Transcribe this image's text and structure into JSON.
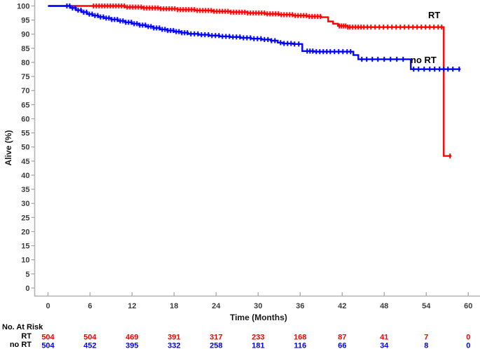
{
  "figure": {
    "background": "#ffffff"
  },
  "chart_data": {
    "type": "line",
    "subtype": "kaplan-meier-step-survival",
    "title": "",
    "xlabel": "Time (Months)",
    "ylabel": "Alive (%)",
    "xlim": [
      0,
      60
    ],
    "ylim": [
      0,
      100
    ],
    "grid": false,
    "legend_position": "inline-curve-labels",
    "xticks": [
      0,
      6,
      12,
      18,
      24,
      30,
      36,
      42,
      48,
      54,
      60
    ],
    "yticks": [
      0,
      5,
      10,
      15,
      20,
      25,
      30,
      35,
      40,
      45,
      50,
      55,
      60,
      65,
      70,
      75,
      80,
      85,
      90,
      95,
      100
    ],
    "axis_color": "#b4b4b4",
    "tick_color": "#a8a8a8",
    "tick_label_color": "#3d3d3d",
    "series": [
      {
        "name": "RT",
        "color": "#ff0000",
        "steps": [
          [
            0,
            100
          ],
          [
            9,
            100
          ],
          [
            11,
            99.6
          ],
          [
            13.5,
            99.3
          ],
          [
            16,
            99
          ],
          [
            18.5,
            98.7
          ],
          [
            21,
            98.4
          ],
          [
            23.5,
            98.1
          ],
          [
            26,
            97.8
          ],
          [
            28.5,
            97.5
          ],
          [
            31,
            97.2
          ],
          [
            33,
            96.9
          ],
          [
            35,
            96.6
          ],
          [
            37,
            96.3
          ],
          [
            39,
            96
          ],
          [
            40,
            94.5
          ],
          [
            40.7,
            93.7
          ],
          [
            41.4,
            92.9
          ],
          [
            42.8,
            92.5
          ],
          [
            56.5,
            46.8
          ],
          [
            57.6,
            46.8
          ]
        ],
        "censor_months": [
          6.5,
          6.9,
          7.3,
          7.7,
          8.1,
          8.5,
          8.9,
          9.3,
          9.7,
          10.1,
          10.5,
          10.9,
          11.3,
          11.7,
          12.1,
          12.5,
          12.9,
          13.3,
          13.7,
          14.1,
          14.5,
          14.9,
          15.3,
          15.7,
          16.1,
          16.5,
          16.9,
          17.3,
          17.7,
          18.1,
          18.5,
          18.9,
          19.3,
          19.7,
          20.1,
          20.5,
          20.9,
          21.3,
          21.7,
          22.1,
          22.5,
          22.9,
          23.3,
          23.7,
          24.1,
          24.5,
          24.9,
          25.3,
          25.7,
          26.1,
          26.5,
          26.9,
          27.3,
          27.7,
          28.1,
          28.5,
          28.9,
          29.3,
          29.7,
          30.1,
          30.5,
          30.9,
          31.3,
          31.7,
          32.1,
          32.5,
          32.9,
          33.3,
          33.7,
          34.1,
          34.5,
          34.9,
          35.3,
          35.7,
          36.1,
          36.5,
          36.9,
          37.3,
          37.7,
          38.1,
          38.5,
          38.9,
          41.6,
          41.9,
          42.2,
          42.5,
          42.8,
          43.1,
          43.5,
          43.9,
          44.3,
          44.7,
          45.1,
          45.6,
          46.1,
          46.7,
          47.3,
          47.9,
          48.5,
          49.1,
          49.7,
          50.3,
          50.9,
          51.5,
          52.1,
          52.7,
          53.3,
          53.9,
          54.5,
          55.1,
          55.7,
          56.2,
          57.4
        ]
      },
      {
        "name": "no RT",
        "color": "#0000ff",
        "steps": [
          [
            0,
            100
          ],
          [
            2.6,
            100
          ],
          [
            3.2,
            99.3
          ],
          [
            4,
            98.5
          ],
          [
            4.8,
            97.8
          ],
          [
            5.6,
            97.1
          ],
          [
            6.4,
            96.6
          ],
          [
            7.2,
            96.1
          ],
          [
            8,
            95.7
          ],
          [
            9,
            95.2
          ],
          [
            10,
            94.7
          ],
          [
            11,
            94.2
          ],
          [
            12,
            93.7
          ],
          [
            13,
            93.2
          ],
          [
            14,
            92.7
          ],
          [
            15,
            92.2
          ],
          [
            16,
            91.7
          ],
          [
            17,
            91.3
          ],
          [
            18,
            90.9
          ],
          [
            19,
            90.5
          ],
          [
            20,
            90.1
          ],
          [
            21.5,
            89.8
          ],
          [
            23,
            89.5
          ],
          [
            24.5,
            89.2
          ],
          [
            26,
            89
          ],
          [
            27.5,
            88.7
          ],
          [
            29,
            88.4
          ],
          [
            30.5,
            88.1
          ],
          [
            31.8,
            87.7
          ],
          [
            32.8,
            87
          ],
          [
            33.5,
            86.7
          ],
          [
            35,
            86.5
          ],
          [
            36.3,
            84
          ],
          [
            38,
            83.8
          ],
          [
            43.6,
            82.6
          ],
          [
            44.3,
            81.1
          ],
          [
            51.8,
            77.6
          ],
          [
            58.9,
            77.6
          ]
        ],
        "censor_months": [
          2.7,
          3.1,
          3.5,
          3.9,
          4.3,
          4.7,
          5.1,
          5.5,
          5.9,
          6.3,
          6.7,
          7.1,
          7.5,
          7.9,
          8.3,
          8.7,
          9.1,
          9.5,
          9.9,
          10.3,
          10.7,
          11.1,
          11.5,
          11.9,
          12.3,
          12.7,
          13.1,
          13.5,
          13.9,
          14.3,
          14.7,
          15.1,
          15.5,
          15.9,
          16.3,
          16.7,
          17.1,
          17.5,
          17.9,
          18.3,
          18.7,
          19.1,
          19.5,
          19.9,
          20.4,
          20.9,
          21.4,
          21.9,
          22.4,
          22.9,
          23.4,
          23.9,
          24.4,
          24.9,
          25.4,
          25.9,
          26.4,
          26.9,
          27.4,
          27.9,
          28.4,
          28.9,
          29.4,
          29.9,
          30.4,
          30.9,
          31.4,
          31.9,
          32.4,
          33.2,
          33.7,
          34.2,
          34.7,
          35.2,
          35.8,
          37,
          37.4,
          37.8,
          38.3,
          38.8,
          39.3,
          39.8,
          40.3,
          40.9,
          41.5,
          42.1,
          42.7,
          43.2,
          44.8,
          45.5,
          46.3,
          47.1,
          48,
          48.9,
          49.8,
          50.7,
          52.2,
          52.9,
          53.7,
          54.5,
          55.2,
          55.9,
          56.5,
          57.1,
          57.8,
          58.7
        ]
      }
    ],
    "at_risk": {
      "title": "No. At Risk",
      "rows": [
        {
          "label": "RT",
          "color": "#ff0000",
          "values": [
            504,
            504,
            469,
            391,
            317,
            233,
            168,
            87,
            41,
            7,
            0
          ]
        },
        {
          "label": "no RT",
          "color": "#0000ff",
          "values": [
            504,
            452,
            395,
            332,
            258,
            181,
            116,
            66,
            34,
            8,
            0
          ]
        }
      ]
    }
  }
}
